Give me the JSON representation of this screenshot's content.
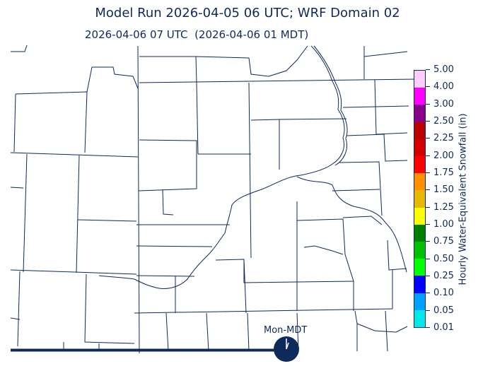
{
  "title": "Model Run 2026-04-05 06 UTC; WRF Domain 02",
  "subtitle": "2026-04-06 07 UTC  (2026-04-06 01 MDT)",
  "colorbar": {
    "label": "Hourly Water-Equivalent Snowfall (in)",
    "ticks": [
      "5.00",
      "4.00",
      "3.00",
      "2.50",
      "2.25",
      "2.00",
      "1.75",
      "1.50",
      "1.25",
      "1.00",
      "0.75",
      "0.50",
      "0.25",
      "0.10",
      "0.05",
      "0.01"
    ],
    "colors": [
      "#ffccff",
      "#ff00ff",
      "#880088",
      "#bb0000",
      "#d40000",
      "#ff0000",
      "#ff9000",
      "#e6b800",
      "#ffff00",
      "#008000",
      "#00c000",
      "#00ff00",
      "#0000ff",
      "#00a0ff",
      "#00e8e8"
    ]
  },
  "timeline": {
    "label": "Mon-MDT",
    "color": "#0d2a5a",
    "icon": "clock-icon"
  },
  "map": {
    "boundary_color": "#0d2a5a"
  }
}
